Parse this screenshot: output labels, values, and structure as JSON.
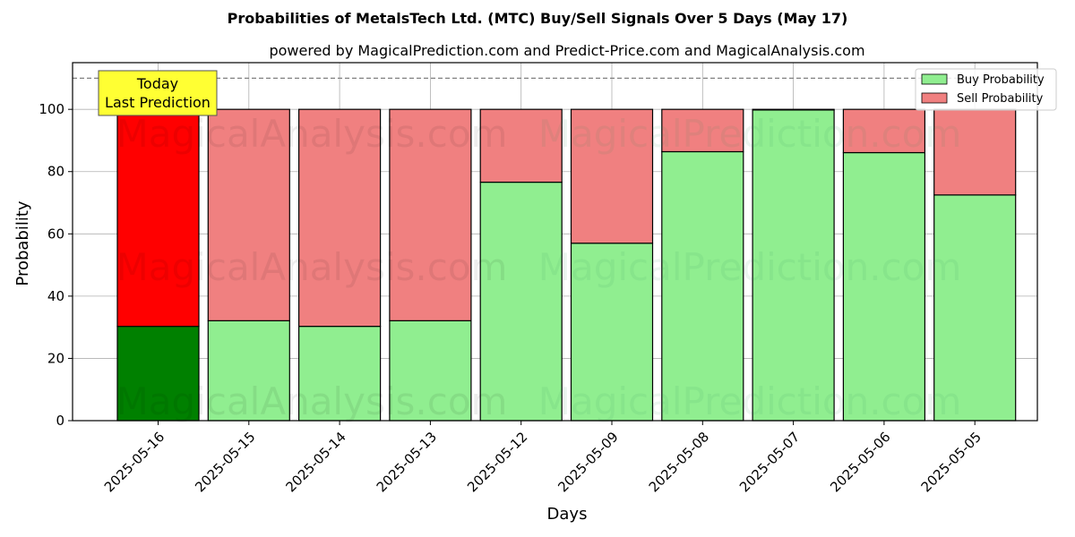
{
  "chart_data": {
    "type": "bar",
    "stacked": true,
    "title": "Probabilities of MetalsTech Ltd. (MTC) Buy/Sell Signals Over 5 Days (May 17)",
    "subtitle": "powered by MagicalPrediction.com and Predict-Price.com and MagicalAnalysis.com",
    "xlabel": "Days",
    "ylabel": "Probability",
    "ylim": [
      0,
      115
    ],
    "yticks": [
      0,
      20,
      40,
      60,
      80,
      100
    ],
    "grid": true,
    "legend_position": "top-right",
    "reference_line": 110,
    "categories": [
      "2025-05-16",
      "2025-05-15",
      "2025-05-14",
      "2025-05-13",
      "2025-05-12",
      "2025-05-09",
      "2025-05-08",
      "2025-05-07",
      "2025-05-06",
      "2025-05-05"
    ],
    "series": [
      {
        "name": "Buy Probability",
        "values": [
          30.3,
          32.1,
          30.3,
          32.1,
          76.6,
          57.0,
          86.4,
          99.8,
          86.1,
          72.5
        ],
        "color": "#90ee90",
        "highlight_color": "#008000"
      },
      {
        "name": "Sell Probability",
        "values": [
          69.7,
          67.9,
          69.7,
          67.9,
          23.4,
          43.0,
          13.6,
          0.2,
          13.9,
          27.5
        ],
        "color": "#f08080",
        "highlight_color": "#ff0000"
      }
    ],
    "annotation": {
      "lines": [
        "Today",
        "Last Prediction"
      ],
      "background": "#ffff33"
    },
    "watermarks": [
      "MagicalAnalysis.com",
      "MagicalPrediction.com"
    ]
  }
}
